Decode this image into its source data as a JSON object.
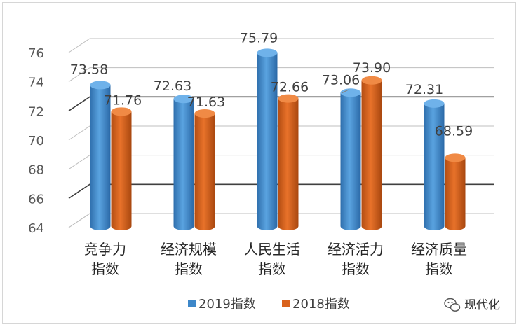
{
  "chart_data": {
    "type": "bar",
    "categories": [
      [
        "竞争力",
        "指数"
      ],
      [
        "经济规模",
        "指数"
      ],
      [
        "人民生活",
        "指数"
      ],
      [
        "经济活力",
        "指数"
      ],
      [
        "经济质量",
        "指数"
      ]
    ],
    "series": [
      {
        "name": "2019指数",
        "values": [
          73.58,
          72.63,
          75.79,
          73.06,
          72.31
        ],
        "labels": [
          "73.58",
          "72.63",
          "75.79",
          "73.06",
          "72.31"
        ],
        "color": "#3d87c9"
      },
      {
        "name": "2018指数",
        "values": [
          71.76,
          71.63,
          72.66,
          73.9,
          68.59
        ],
        "labels": [
          "71.76",
          "71.63",
          "72.66",
          "73.90",
          "68.59"
        ],
        "color": "#d9621c"
      }
    ],
    "yticks": [
      "64",
      "66",
      "68",
      "70",
      "72",
      "74",
      "76"
    ],
    "ylim": [
      64,
      76
    ],
    "grid": true,
    "legend_position": "bottom-center",
    "title": "",
    "xlabel": "",
    "ylabel": ""
  },
  "watermark": {
    "text": "现代化",
    "icon": "wechat-icon"
  }
}
